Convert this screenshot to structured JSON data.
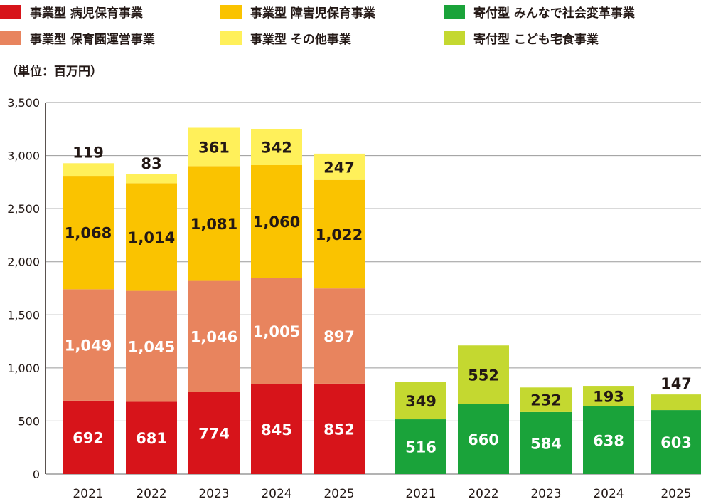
{
  "legend": {
    "items": [
      {
        "label": "事業型 病児保育事業",
        "color": "#D7141A"
      },
      {
        "label": "事業型 障害児保育事業",
        "color": "#FAC300"
      },
      {
        "label": "寄付型 みんなで社会変革事業",
        "color": "#1AA33A"
      },
      {
        "label": "事業型 保育園運営事業",
        "color": "#E8845E"
      },
      {
        "label": "事業型 その他事業",
        "color": "#FFF05A"
      },
      {
        "label": "寄付型 こども宅食事業",
        "color": "#C4D830"
      }
    ]
  },
  "unit_label": "（単位：百万円）",
  "chart_data": {
    "type": "bar",
    "stacked": true,
    "ylim": [
      0,
      3500
    ],
    "yticks": [
      "0",
      "500",
      "1,000",
      "1,500",
      "2,000",
      "2,500",
      "3,000",
      "3,500"
    ],
    "grid": true,
    "groups": [
      {
        "categories": [
          "2021",
          "2022",
          "2023",
          "2024",
          "2025"
        ],
        "series": [
          {
            "name": "事業型 病児保育事業",
            "color": "#D7141A",
            "label_color": "#ffffff",
            "values": [
              692,
              681,
              774,
              845,
              852
            ],
            "labels": [
              "692",
              "681",
              "774",
              "845",
              "852"
            ]
          },
          {
            "name": "事業型 保育園運営事業",
            "color": "#E8845E",
            "label_color": "#ffffff",
            "values": [
              1049,
              1045,
              1046,
              1005,
              897
            ],
            "labels": [
              "1,049",
              "1,045",
              "1,046",
              "1,005",
              "897"
            ]
          },
          {
            "name": "事業型 障害児保育事業",
            "color": "#FAC300",
            "label_color": "#231815",
            "values": [
              1068,
              1014,
              1081,
              1060,
              1022
            ],
            "labels": [
              "1,068",
              "1,014",
              "1,081",
              "1,060",
              "1,022"
            ]
          },
          {
            "name": "事業型 その他事業",
            "color": "#FFF05A",
            "label_color": "#231815",
            "values": [
              119,
              83,
              361,
              342,
              247
            ],
            "labels": [
              "119",
              "83",
              "361",
              "342",
              "247"
            ],
            "label_above": [
              true,
              true,
              false,
              false,
              false
            ]
          }
        ]
      },
      {
        "categories": [
          "2021",
          "2022",
          "2023",
          "2024",
          "2025"
        ],
        "series": [
          {
            "name": "寄付型 みんなで社会変革事業",
            "color": "#1AA33A",
            "label_color": "#ffffff",
            "values": [
              516,
              660,
              584,
              638,
              603
            ],
            "labels": [
              "516",
              "660",
              "584",
              "638",
              "603"
            ]
          },
          {
            "name": "寄付型 こども宅食事業",
            "color": "#C4D830",
            "label_color": "#231815",
            "values": [
              349,
              552,
              232,
              193,
              147
            ],
            "labels": [
              "349",
              "552",
              "232",
              "193",
              "147"
            ],
            "label_above": [
              false,
              false,
              false,
              false,
              true
            ]
          }
        ]
      }
    ]
  }
}
